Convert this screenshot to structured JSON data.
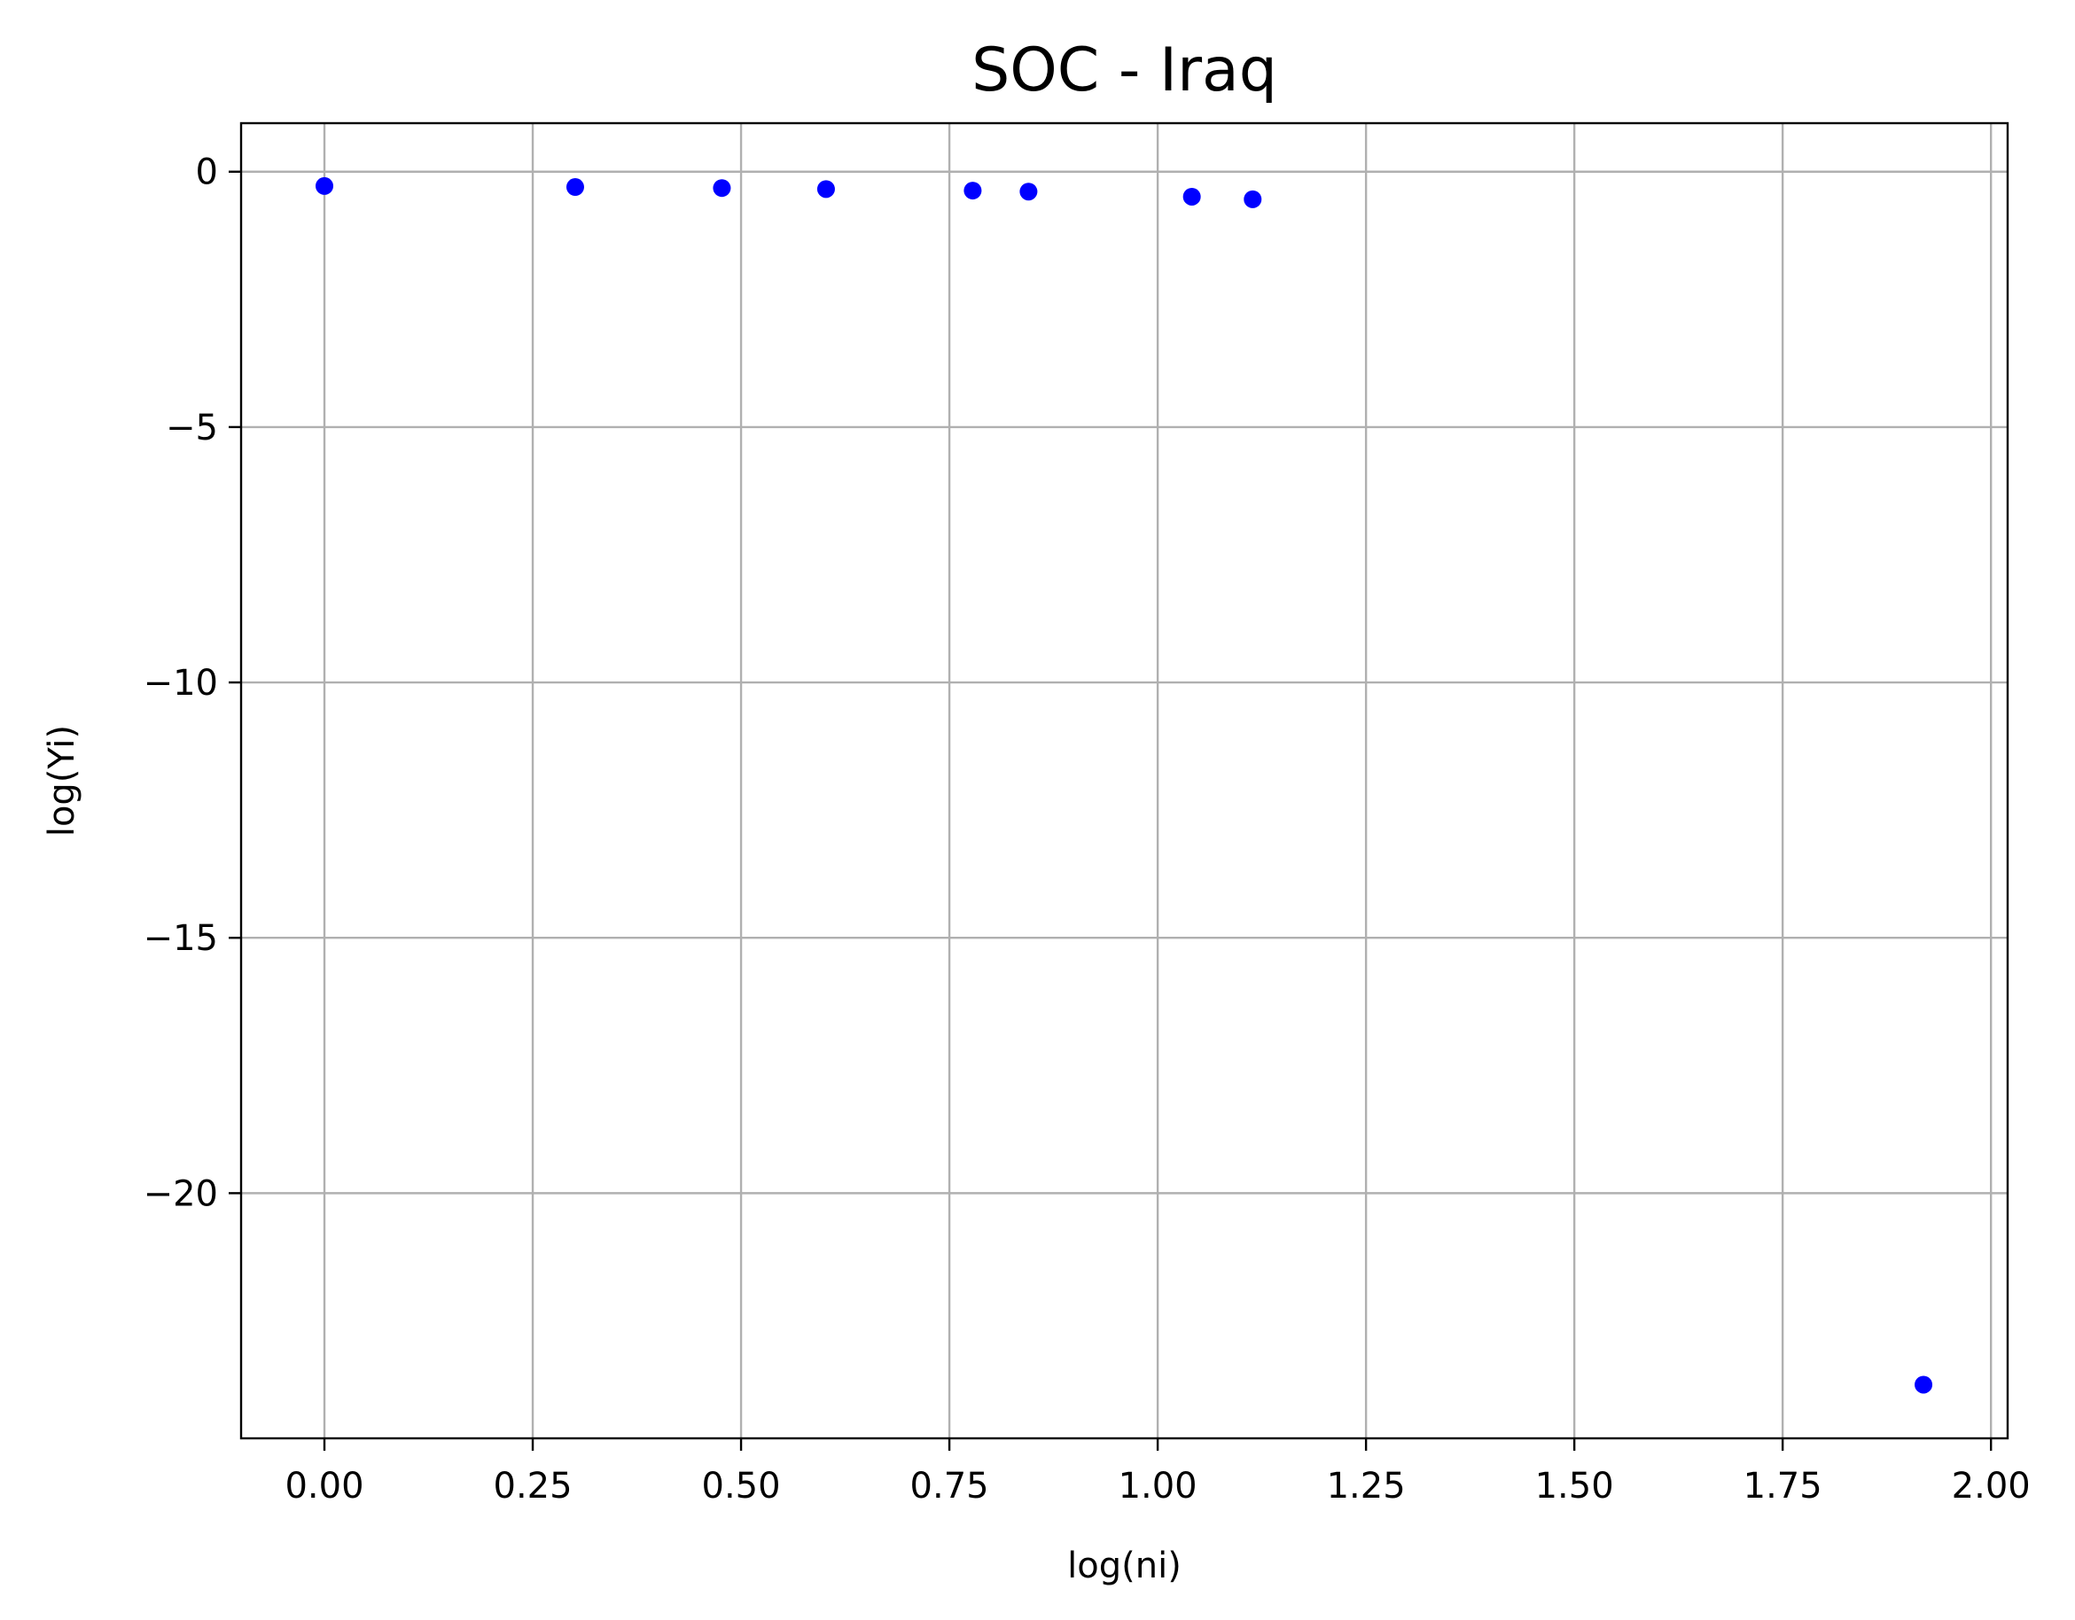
{
  "chart_data": {
    "type": "scatter",
    "title": "SOC - Iraq",
    "xlabel": "log(ni)",
    "ylabel": "log(Yi)",
    "xlim": [
      -0.1,
      2.02
    ],
    "ylim": [
      -24.8,
      0.95
    ],
    "xticks": [
      0.0,
      0.25,
      0.5,
      0.75,
      1.0,
      1.25,
      1.5,
      1.75,
      2.0
    ],
    "xtick_labels": [
      "0.00",
      "0.25",
      "0.50",
      "0.75",
      "1.00",
      "1.25",
      "1.50",
      "1.75",
      "2.00"
    ],
    "yticks": [
      0,
      -5,
      -10,
      -15,
      -20
    ],
    "ytick_labels": [
      "0",
      "−5",
      "−10",
      "−15",
      "−20"
    ],
    "grid": true,
    "legend": "none",
    "series": [
      {
        "color": "#0000ff",
        "x": [
          0.0,
          0.301,
          0.477,
          0.602,
          0.778,
          0.845,
          1.041,
          1.114,
          1.919
        ],
        "y": [
          -0.28,
          -0.3,
          -0.32,
          -0.34,
          -0.37,
          -0.39,
          -0.49,
          -0.54,
          -23.75
        ]
      }
    ]
  }
}
